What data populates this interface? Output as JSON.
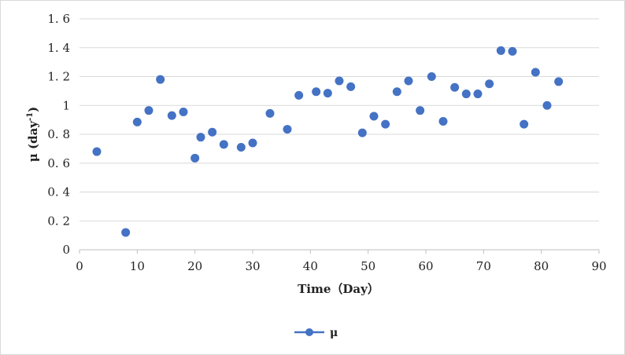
{
  "chart_data": {
    "type": "scatter",
    "title": "",
    "xlabel": "Time（Day）",
    "ylabel_main": "μ (day",
    "ylabel_sup": "-1",
    "ylabel_close": ")",
    "xlim": [
      0,
      90
    ],
    "ylim": [
      0,
      1.6
    ],
    "x_ticks": [
      0,
      10,
      20,
      30,
      40,
      50,
      60,
      70,
      80,
      90
    ],
    "x_tick_labels": [
      "0",
      "10",
      "20",
      "30",
      "40",
      "50",
      "60",
      "70",
      "80",
      "90"
    ],
    "y_ticks": [
      0,
      0.2,
      0.4,
      0.6,
      0.8,
      1,
      1.2,
      1.4,
      1.6
    ],
    "y_tick_labels": [
      "0",
      "0. 2",
      "0. 4",
      "0. 6",
      "0. 8",
      "1",
      "1. 2",
      "1. 4",
      "1. 6"
    ],
    "grid": "horizontal",
    "legend_position": "bottom",
    "series": [
      {
        "name": "μ",
        "color": "#4472c4",
        "x": [
          3,
          8,
          10,
          12,
          14,
          16,
          18,
          20,
          21,
          23,
          25,
          28,
          30,
          33,
          36,
          38,
          41,
          43,
          45,
          47,
          49,
          51,
          53,
          55,
          57,
          59,
          61,
          63,
          65,
          67,
          69,
          71,
          73,
          75,
          77,
          79,
          81,
          83
        ],
        "y": [
          0.68,
          0.12,
          0.885,
          0.965,
          1.18,
          0.93,
          0.955,
          0.635,
          0.78,
          0.815,
          0.73,
          0.71,
          0.74,
          0.945,
          0.835,
          1.07,
          1.095,
          1.085,
          1.17,
          1.13,
          0.81,
          0.925,
          0.87,
          1.095,
          1.17,
          0.965,
          1.2,
          0.89,
          1.125,
          1.08,
          1.08,
          1.15,
          1.38,
          1.375,
          0.87,
          1.23,
          1.0,
          1.165
        ]
      }
    ]
  }
}
